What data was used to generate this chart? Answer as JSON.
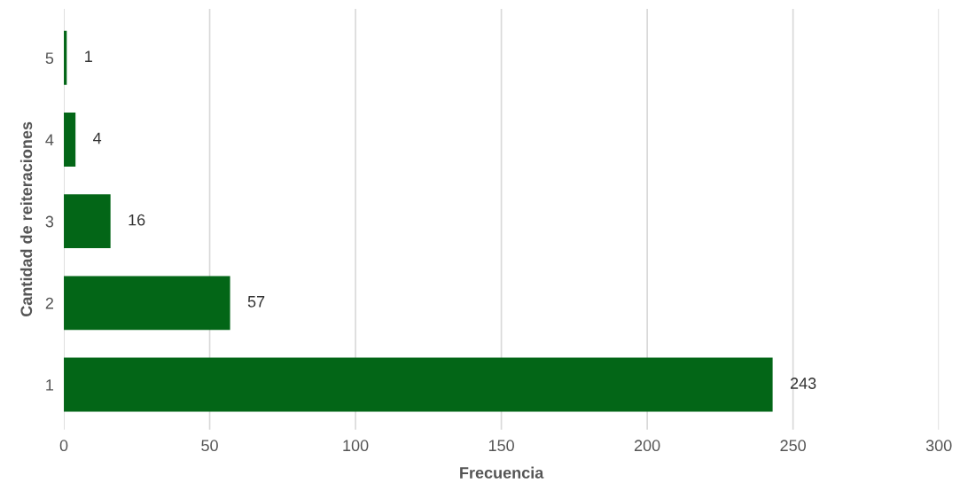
{
  "chart_data": {
    "type": "bar",
    "orientation": "horizontal",
    "xlabel": "Frecuencia",
    "ylabel": "Cantidad de reiteraciones",
    "categories": [
      "5",
      "4",
      "3",
      "2",
      "1"
    ],
    "values": [
      1,
      4,
      16,
      57,
      243
    ],
    "color": "#036617",
    "xlim": [
      0,
      300
    ],
    "xticks": [
      0,
      50,
      100,
      150,
      200,
      250,
      300
    ],
    "grid": "x",
    "data_labels": true,
    "legend": false
  }
}
